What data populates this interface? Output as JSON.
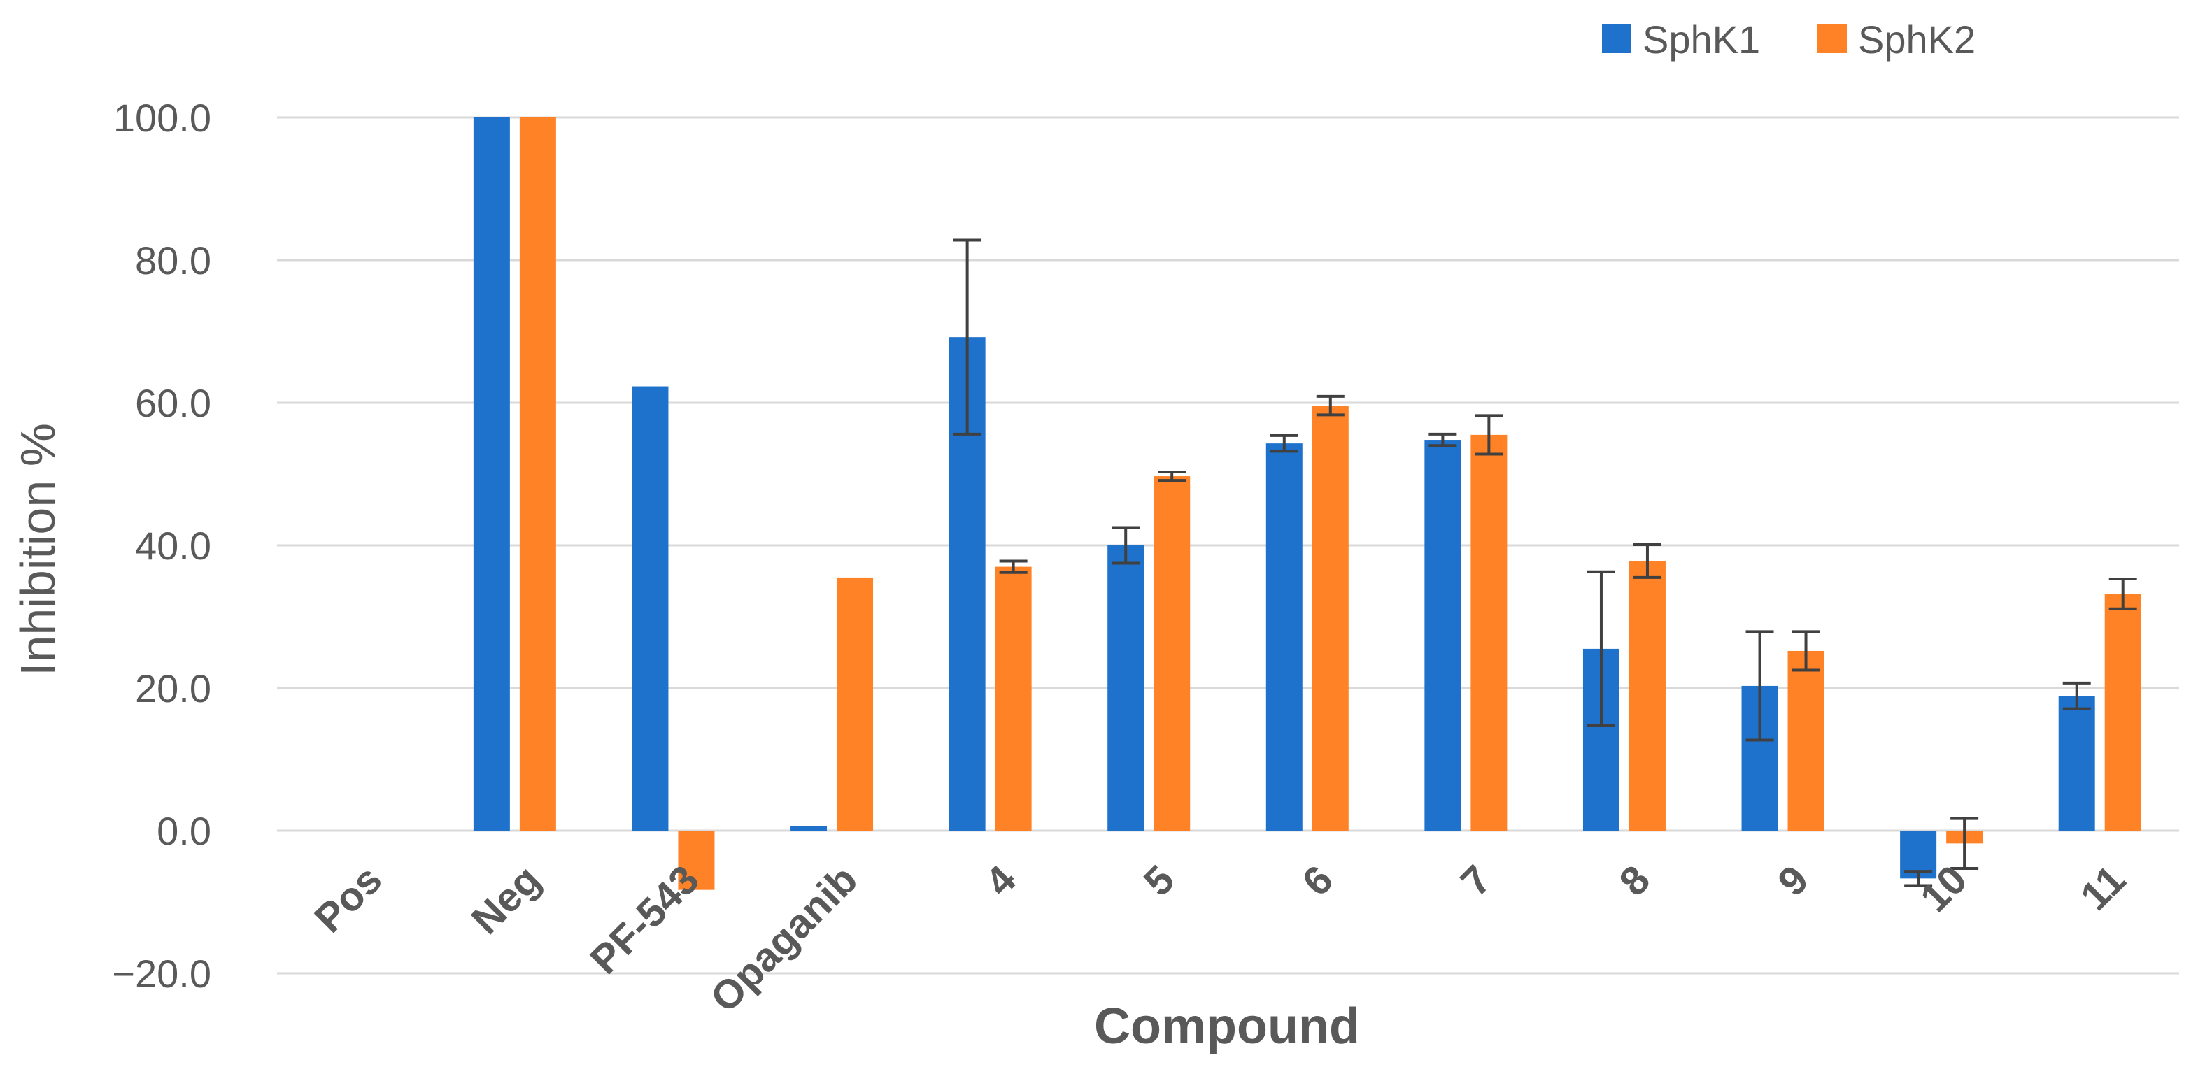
{
  "chart_data": {
    "type": "bar",
    "title": "",
    "xlabel": "Compound",
    "ylabel": "Inhibition %",
    "ylim": [
      -20,
      100
    ],
    "yticks": [
      -20,
      0,
      20,
      40,
      60,
      80,
      100
    ],
    "ytick_labels": [
      "−20.0",
      "0.0",
      "20.0",
      "40.0",
      "60.0",
      "80.0",
      "100.0"
    ],
    "grid": true,
    "legend_position": "top-right",
    "categories": [
      "Pos",
      "Neg",
      "PF-543",
      "Opaganib",
      "4",
      "5",
      "6",
      "7",
      "8",
      "9",
      "10",
      "11"
    ],
    "series": [
      {
        "name": "SphK1",
        "color": "#1F72CC",
        "values": [
          0,
          100,
          62.3,
          0.6,
          69.2,
          40.0,
          54.3,
          54.8,
          25.5,
          20.3,
          -6.7,
          18.9
        ],
        "errors": [
          null,
          null,
          null,
          null,
          13.6,
          2.5,
          1.1,
          0.8,
          10.8,
          7.6,
          1.0,
          1.8
        ]
      },
      {
        "name": "SphK2",
        "color": "#FF8326",
        "values": [
          0,
          100,
          -8.3,
          35.5,
          37.0,
          49.7,
          59.6,
          55.5,
          37.8,
          25.2,
          -1.8,
          33.2
        ],
        "errors": [
          null,
          null,
          null,
          null,
          0.8,
          0.6,
          1.3,
          2.7,
          2.3,
          2.7,
          3.5,
          2.1
        ]
      }
    ]
  }
}
